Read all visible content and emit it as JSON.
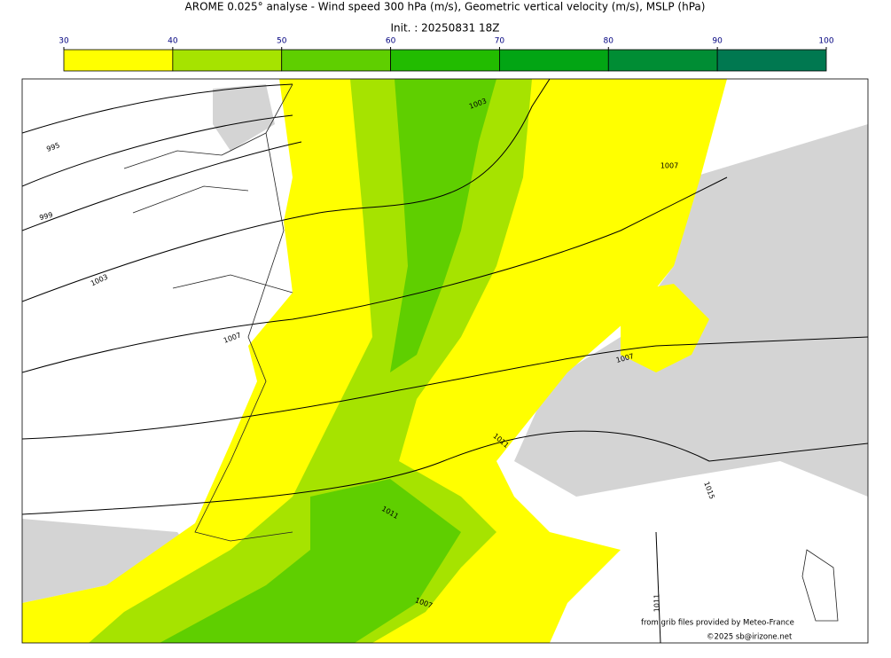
{
  "header": {
    "title": "AROME 0.025° analyse - Wind speed 300 hPa (m/s), Geometric vertical velocity (m/s), MSLP (hPa)",
    "subtitle": "Init. : 20250831 18Z"
  },
  "colorbar": {
    "ticks": [
      30,
      40,
      50,
      60,
      70,
      80,
      90,
      100
    ],
    "colors": [
      "#ffff00",
      "#a6e300",
      "#5fcf00",
      "#22bc00",
      "#02a514",
      "#008d34",
      "#007850"
    ]
  },
  "map": {
    "isobar_labels": [
      "995",
      "999",
      "1003",
      "1007",
      "1003",
      "1007",
      "1007",
      "1011",
      "1011",
      "1015",
      "1007",
      "1011"
    ]
  },
  "credits": {
    "source": "from grib files provided by Meteo-France",
    "copyright": "©2025 sb@irizone.net"
  }
}
